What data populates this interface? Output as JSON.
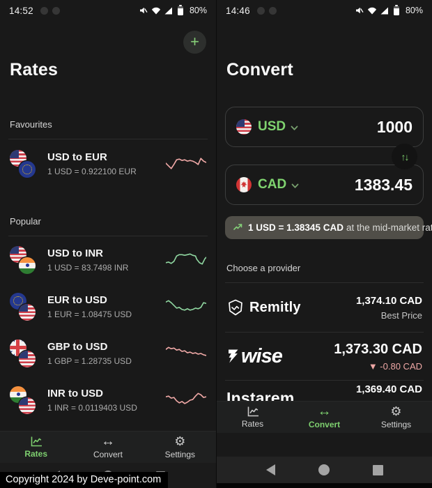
{
  "colors": {
    "background": "#191919",
    "accent_green": "#7fd36f",
    "spark_green": "#8fd6a0",
    "spark_pink": "#efa8a6",
    "pill_gray": "#504e48"
  },
  "icons": {
    "add": "+",
    "convert_arrows": "↔",
    "settings_gear": "⚙",
    "swap": "↑↓"
  },
  "copyright": "Copyright 2024 by Deve-point.com",
  "left": {
    "status": {
      "time": "14:52",
      "battery": "80%",
      "status_icons": [
        "mute",
        "wifi",
        "signal",
        "battery"
      ]
    },
    "title": "Rates",
    "favourites_label": "Favourites",
    "popular_label": "Popular",
    "rows": [
      {
        "pair": "USD to EUR",
        "rate": "1 USD = 0.922100 EUR",
        "flags": [
          "us",
          "eu"
        ],
        "spark_color": "#efa8a6",
        "spark": [
          [
            0,
            12
          ],
          [
            4,
            16
          ],
          [
            8,
            20
          ],
          [
            12,
            14
          ],
          [
            16,
            7
          ],
          [
            20,
            6
          ],
          [
            24,
            8
          ],
          [
            28,
            7
          ],
          [
            32,
            9
          ],
          [
            36,
            8
          ],
          [
            40,
            9
          ],
          [
            44,
            11
          ],
          [
            48,
            14
          ],
          [
            52,
            5
          ],
          [
            56,
            9
          ],
          [
            60,
            11
          ]
        ]
      },
      {
        "pair": "USD to INR",
        "rate": "1 USD = 83.7498 INR",
        "flags": [
          "us",
          "in"
        ],
        "spark_color": "#8fd6a0",
        "spark": [
          [
            0,
            17
          ],
          [
            4,
            16
          ],
          [
            8,
            18
          ],
          [
            12,
            15
          ],
          [
            16,
            7
          ],
          [
            20,
            5
          ],
          [
            24,
            5
          ],
          [
            28,
            6
          ],
          [
            32,
            5
          ],
          [
            36,
            4
          ],
          [
            40,
            6
          ],
          [
            44,
            7
          ],
          [
            46,
            12
          ],
          [
            50,
            17
          ],
          [
            54,
            19
          ],
          [
            58,
            11
          ],
          [
            60,
            9
          ]
        ]
      },
      {
        "pair": "EUR to USD",
        "rate": "1 EUR = 1.08475 USD",
        "flags": [
          "eu",
          "us"
        ],
        "spark_color": "#8fd6a0",
        "spark": [
          [
            0,
            6
          ],
          [
            4,
            4
          ],
          [
            8,
            7
          ],
          [
            12,
            11
          ],
          [
            16,
            15
          ],
          [
            20,
            14
          ],
          [
            24,
            17
          ],
          [
            28,
            18
          ],
          [
            32,
            16
          ],
          [
            36,
            18
          ],
          [
            40,
            17
          ],
          [
            44,
            15
          ],
          [
            48,
            16
          ],
          [
            52,
            14
          ],
          [
            56,
            7
          ],
          [
            60,
            8
          ]
        ]
      },
      {
        "pair": "GBP to USD",
        "rate": "1 GBP = 1.28735 USD",
        "flags": [
          "gb",
          "us"
        ],
        "spark_color": "#efa8a6",
        "spark": [
          [
            0,
            7
          ],
          [
            4,
            4
          ],
          [
            8,
            6
          ],
          [
            12,
            5
          ],
          [
            16,
            8
          ],
          [
            20,
            7
          ],
          [
            24,
            10
          ],
          [
            28,
            9
          ],
          [
            32,
            12
          ],
          [
            36,
            11
          ],
          [
            40,
            13
          ],
          [
            44,
            12
          ],
          [
            48,
            14
          ],
          [
            52,
            13
          ],
          [
            56,
            15
          ],
          [
            60,
            16
          ]
        ]
      },
      {
        "pair": "INR to USD",
        "rate": "1 INR = 0.0119403 USD",
        "flags": [
          "in",
          "us"
        ],
        "spark_color": "#efa8a6",
        "spark": [
          [
            0,
            8
          ],
          [
            4,
            7
          ],
          [
            8,
            10
          ],
          [
            12,
            9
          ],
          [
            16,
            14
          ],
          [
            20,
            17
          ],
          [
            24,
            15
          ],
          [
            28,
            18
          ],
          [
            32,
            16
          ],
          [
            36,
            13
          ],
          [
            40,
            12
          ],
          [
            44,
            7
          ],
          [
            48,
            3
          ],
          [
            52,
            5
          ],
          [
            56,
            9
          ],
          [
            60,
            8
          ]
        ]
      }
    ],
    "tabs": [
      {
        "label": "Rates",
        "active": true
      },
      {
        "label": "Convert",
        "active": false
      },
      {
        "label": "Settings",
        "active": false
      }
    ]
  },
  "right": {
    "status": {
      "time": "14:46",
      "battery": "80%",
      "status_icons": [
        "mute",
        "wifi",
        "signal",
        "battery"
      ]
    },
    "title": "Convert",
    "from_card": {
      "currency": "USD",
      "amount": "1000",
      "flag": "us"
    },
    "to_card": {
      "currency": "CAD",
      "amount": "1383.45",
      "flag": "ca"
    },
    "rate_info": {
      "rate_bold": "1 USD = 1.38345 CAD",
      "suffix": "at the mid-market rate"
    },
    "provider_label": "Choose a provider",
    "providers": [
      {
        "name": "Remitly",
        "amount": "1,374.10 CAD",
        "note": "Best Price"
      },
      {
        "name": "wise",
        "amount": "1,373.30 CAD",
        "note": "▼ -0.80 CAD"
      },
      {
        "name": "Instarem.",
        "amount": "1,369.40 CAD",
        "note": ""
      }
    ],
    "tabs": [
      {
        "label": "Rates",
        "active": false
      },
      {
        "label": "Convert",
        "active": true
      },
      {
        "label": "Settings",
        "active": false
      }
    ]
  }
}
